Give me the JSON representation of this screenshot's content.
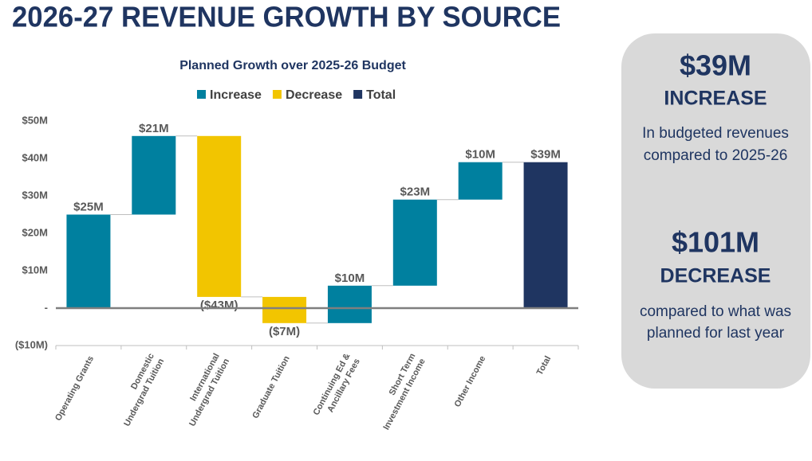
{
  "chart_data": {
    "type": "waterfall",
    "title": "2026-27 REVENUE GROWTH BY SOURCE",
    "subtitle": "Planned Growth over 2025-26 Budget",
    "categories": [
      "Operating Grants",
      "Domestic Undergrad Tuition",
      "International Undergrad Tuition",
      "Graduate Tuition",
      "Continuing Ed & Ancillary Fees",
      "Short Term Investment Income",
      "Other Income",
      "Total"
    ],
    "series": [
      {
        "name": "Increase",
        "color": "#00809f",
        "values": [
          25,
          21,
          null,
          null,
          10,
          23,
          10,
          null
        ],
        "value_labels": [
          "$25M",
          "$21M",
          null,
          null,
          "$10M",
          "$23M",
          "$10M",
          null
        ]
      },
      {
        "name": "Decrease",
        "color": "#f2c500",
        "values": [
          null,
          null,
          -43,
          -7,
          null,
          null,
          null,
          null
        ],
        "value_labels": [
          null,
          null,
          "($43M)",
          "($7M)",
          null,
          null,
          null,
          null
        ]
      },
      {
        "name": "Total",
        "color": "#1f3561",
        "values": [
          null,
          null,
          null,
          null,
          null,
          null,
          null,
          39
        ],
        "value_labels": [
          null,
          null,
          null,
          null,
          null,
          null,
          null,
          "$39M"
        ]
      }
    ],
    "ylim": [
      -10,
      50
    ],
    "yticks": [
      {
        "value": -10,
        "label": "($10M)"
      },
      {
        "value": 0,
        "label": "-"
      },
      {
        "value": 10,
        "label": "$10M"
      },
      {
        "value": 20,
        "label": "$20M"
      },
      {
        "value": 30,
        "label": "$30M"
      },
      {
        "value": 40,
        "label": "$40M"
      },
      {
        "value": 50,
        "label": "$50M"
      }
    ],
    "grid": false,
    "legend": "top"
  },
  "side_panel": {
    "increase_amount": "$39M",
    "increase_label": "INCREASE",
    "increase_note": [
      "In budgeted revenues",
      "compared to 2025-26"
    ],
    "decrease_amount": "$101M",
    "decrease_label": "DECREASE",
    "decrease_note": [
      "compared to what was",
      "planned for last year"
    ]
  }
}
